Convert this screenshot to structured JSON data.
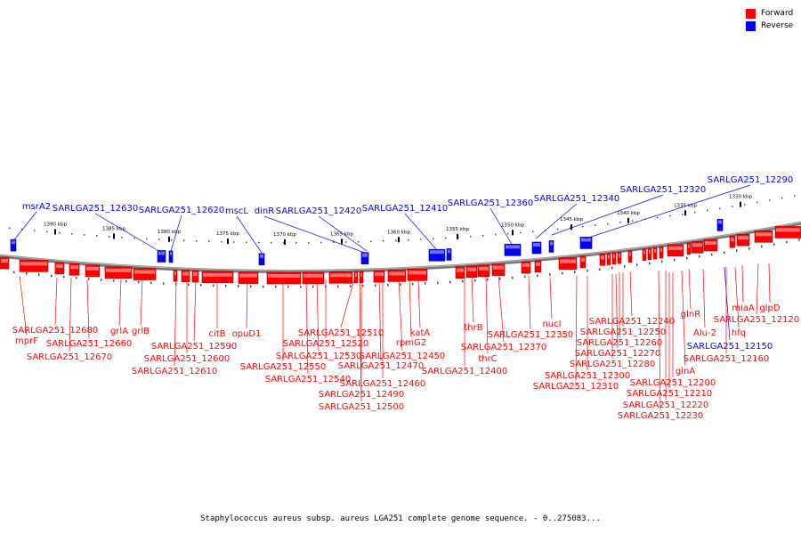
{
  "legend": {
    "forward": {
      "label": "Forward",
      "color": "#ff0000"
    },
    "reverse": {
      "label": "Reverse",
      "color": "#0000ff"
    }
  },
  "caption": "Staphylococcus aureus subsp. aureus LGA251 complete genome sequence. - 0..275083...",
  "ruler": {
    "ticks": [
      "1390 kbp",
      "1385 kbp",
      "1380 kbp",
      "1375 kbp",
      "1370 kbp",
      "1365 kbp",
      "1360 kbp",
      "1355 kbp",
      "1350 kbp",
      "1345 kbp",
      "1340 kbp",
      "1335 kbp",
      "1330 kbp"
    ]
  },
  "reverse_genes": [
    "msrA2",
    "SARLGA251_12630",
    "SARLGA251_12620",
    "mscL",
    "dinR",
    "SARLGA251_12420",
    "SARLGA251_12410",
    "SARLGA251_12360",
    "SARLGA251_12340",
    "SARLGA251_12320",
    "SARLGA251_12290",
    "SARLGA251_12150"
  ],
  "forward_genes": [
    "SARLGA251_12680",
    "mprF",
    "SARLGA251_12670",
    "SARLGA251_12660",
    "grlA",
    "grlB",
    "SARLGA251_12590",
    "SARLGA251_12600",
    "SARLGA251_12610",
    "citB",
    "opuD1",
    "SARLGA251_12510",
    "SARLGA251_12520",
    "SARLGA251_12530",
    "SARLGA251_12550",
    "SARLGA251_12540",
    "SARLGA251_12490",
    "SARLGA251_12500",
    "SARLGA251_12470",
    "SARLGA251_12460",
    "SARLGA251_12450",
    "rpmG2",
    "katA",
    "thrB",
    "thrC",
    "SARLGA251_12400",
    "SARLGA251_12370",
    "SARLGA251_12350",
    "nucI",
    "SARLGA251_12300",
    "SARLGA251_12310",
    "SARLGA251_12280",
    "SARLGA251_12270",
    "SARLGA251_12260",
    "SARLGA251_12250",
    "SARLGA251_12240",
    "SARLGA251_12200",
    "SARLGA251_12210",
    "SARLGA251_12220",
    "SARLGA251_12230",
    "glnA",
    "glnR",
    "Alu-2",
    "hfq",
    "SARLGA251_12160",
    "miaA",
    "glpD",
    "SARLGA251_12120"
  ]
}
